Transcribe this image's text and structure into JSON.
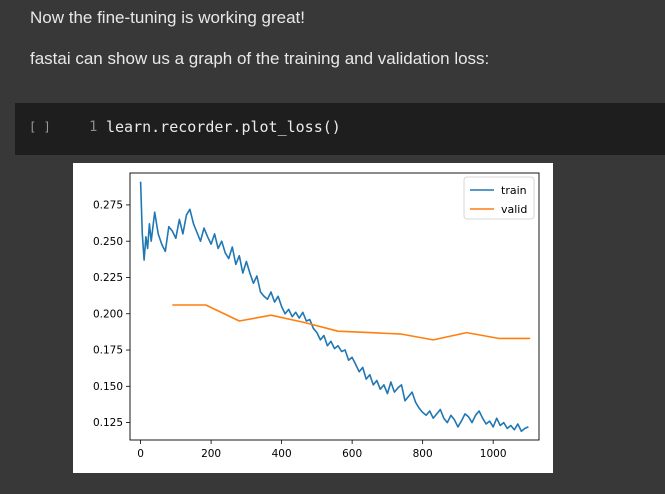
{
  "markdown": {
    "line1": "Now the fine-tuning is working great!",
    "line2": "fastai can show us a graph of the training and validation loss:"
  },
  "cell": {
    "run_label": "[ ]",
    "line_number": "1",
    "code": "learn.recorder.plot_loss()"
  },
  "colors": {
    "page_bg": "#383838",
    "cell_bg": "#1e1e1e",
    "train": "#1f77b4",
    "valid": "#ff7f0e"
  },
  "chart_data": {
    "type": "line",
    "title": "",
    "xlabel": "",
    "ylabel": "",
    "xlim": [
      -30,
      1130
    ],
    "ylim": [
      0.113,
      0.297
    ],
    "x_ticks": [
      0,
      200,
      400,
      600,
      800,
      1000
    ],
    "y_ticks": [
      0.125,
      0.15,
      0.175,
      0.2,
      0.225,
      0.25,
      0.275
    ],
    "grid": false,
    "legend_position": "top-right",
    "series": [
      {
        "name": "train",
        "x": [
          0,
          5,
          10,
          15,
          20,
          25,
          30,
          40,
          50,
          60,
          70,
          80,
          90,
          100,
          110,
          120,
          130,
          140,
          150,
          160,
          170,
          180,
          190,
          200,
          210,
          220,
          230,
          240,
          250,
          260,
          270,
          280,
          290,
          300,
          310,
          320,
          330,
          340,
          350,
          360,
          370,
          380,
          390,
          400,
          410,
          420,
          430,
          440,
          450,
          460,
          470,
          480,
          490,
          500,
          510,
          520,
          530,
          540,
          550,
          560,
          570,
          580,
          590,
          600,
          610,
          620,
          630,
          640,
          650,
          660,
          670,
          680,
          690,
          700,
          710,
          720,
          730,
          740,
          750,
          760,
          770,
          780,
          790,
          800,
          810,
          820,
          830,
          840,
          850,
          860,
          870,
          880,
          890,
          900,
          910,
          920,
          930,
          940,
          950,
          960,
          970,
          980,
          990,
          1000,
          1010,
          1020,
          1030,
          1040,
          1050,
          1060,
          1070,
          1080,
          1090,
          1100
        ],
        "y": [
          0.291,
          0.255,
          0.237,
          0.253,
          0.245,
          0.262,
          0.25,
          0.27,
          0.255,
          0.248,
          0.243,
          0.26,
          0.257,
          0.252,
          0.265,
          0.255,
          0.268,
          0.272,
          0.262,
          0.256,
          0.25,
          0.259,
          0.253,
          0.248,
          0.255,
          0.245,
          0.25,
          0.242,
          0.238,
          0.246,
          0.234,
          0.24,
          0.228,
          0.236,
          0.228,
          0.221,
          0.226,
          0.215,
          0.212,
          0.21,
          0.215,
          0.208,
          0.212,
          0.205,
          0.2,
          0.203,
          0.198,
          0.201,
          0.197,
          0.201,
          0.195,
          0.196,
          0.19,
          0.187,
          0.182,
          0.185,
          0.178,
          0.181,
          0.176,
          0.178,
          0.174,
          0.175,
          0.168,
          0.17,
          0.165,
          0.16,
          0.163,
          0.155,
          0.158,
          0.151,
          0.154,
          0.148,
          0.151,
          0.145,
          0.153,
          0.146,
          0.149,
          0.151,
          0.14,
          0.143,
          0.146,
          0.139,
          0.135,
          0.132,
          0.13,
          0.133,
          0.128,
          0.131,
          0.134,
          0.128,
          0.125,
          0.13,
          0.127,
          0.122,
          0.126,
          0.131,
          0.129,
          0.125,
          0.13,
          0.133,
          0.128,
          0.124,
          0.126,
          0.122,
          0.128,
          0.123,
          0.125,
          0.121,
          0.123,
          0.12,
          0.124,
          0.119,
          0.121,
          0.122
        ]
      },
      {
        "name": "valid",
        "x": [
          90,
          185,
          280,
          370,
          465,
          560,
          650,
          740,
          830,
          925,
          1015,
          1105
        ],
        "y": [
          0.206,
          0.206,
          0.195,
          0.199,
          0.194,
          0.188,
          0.187,
          0.186,
          0.182,
          0.187,
          0.183,
          0.183
        ]
      }
    ]
  }
}
